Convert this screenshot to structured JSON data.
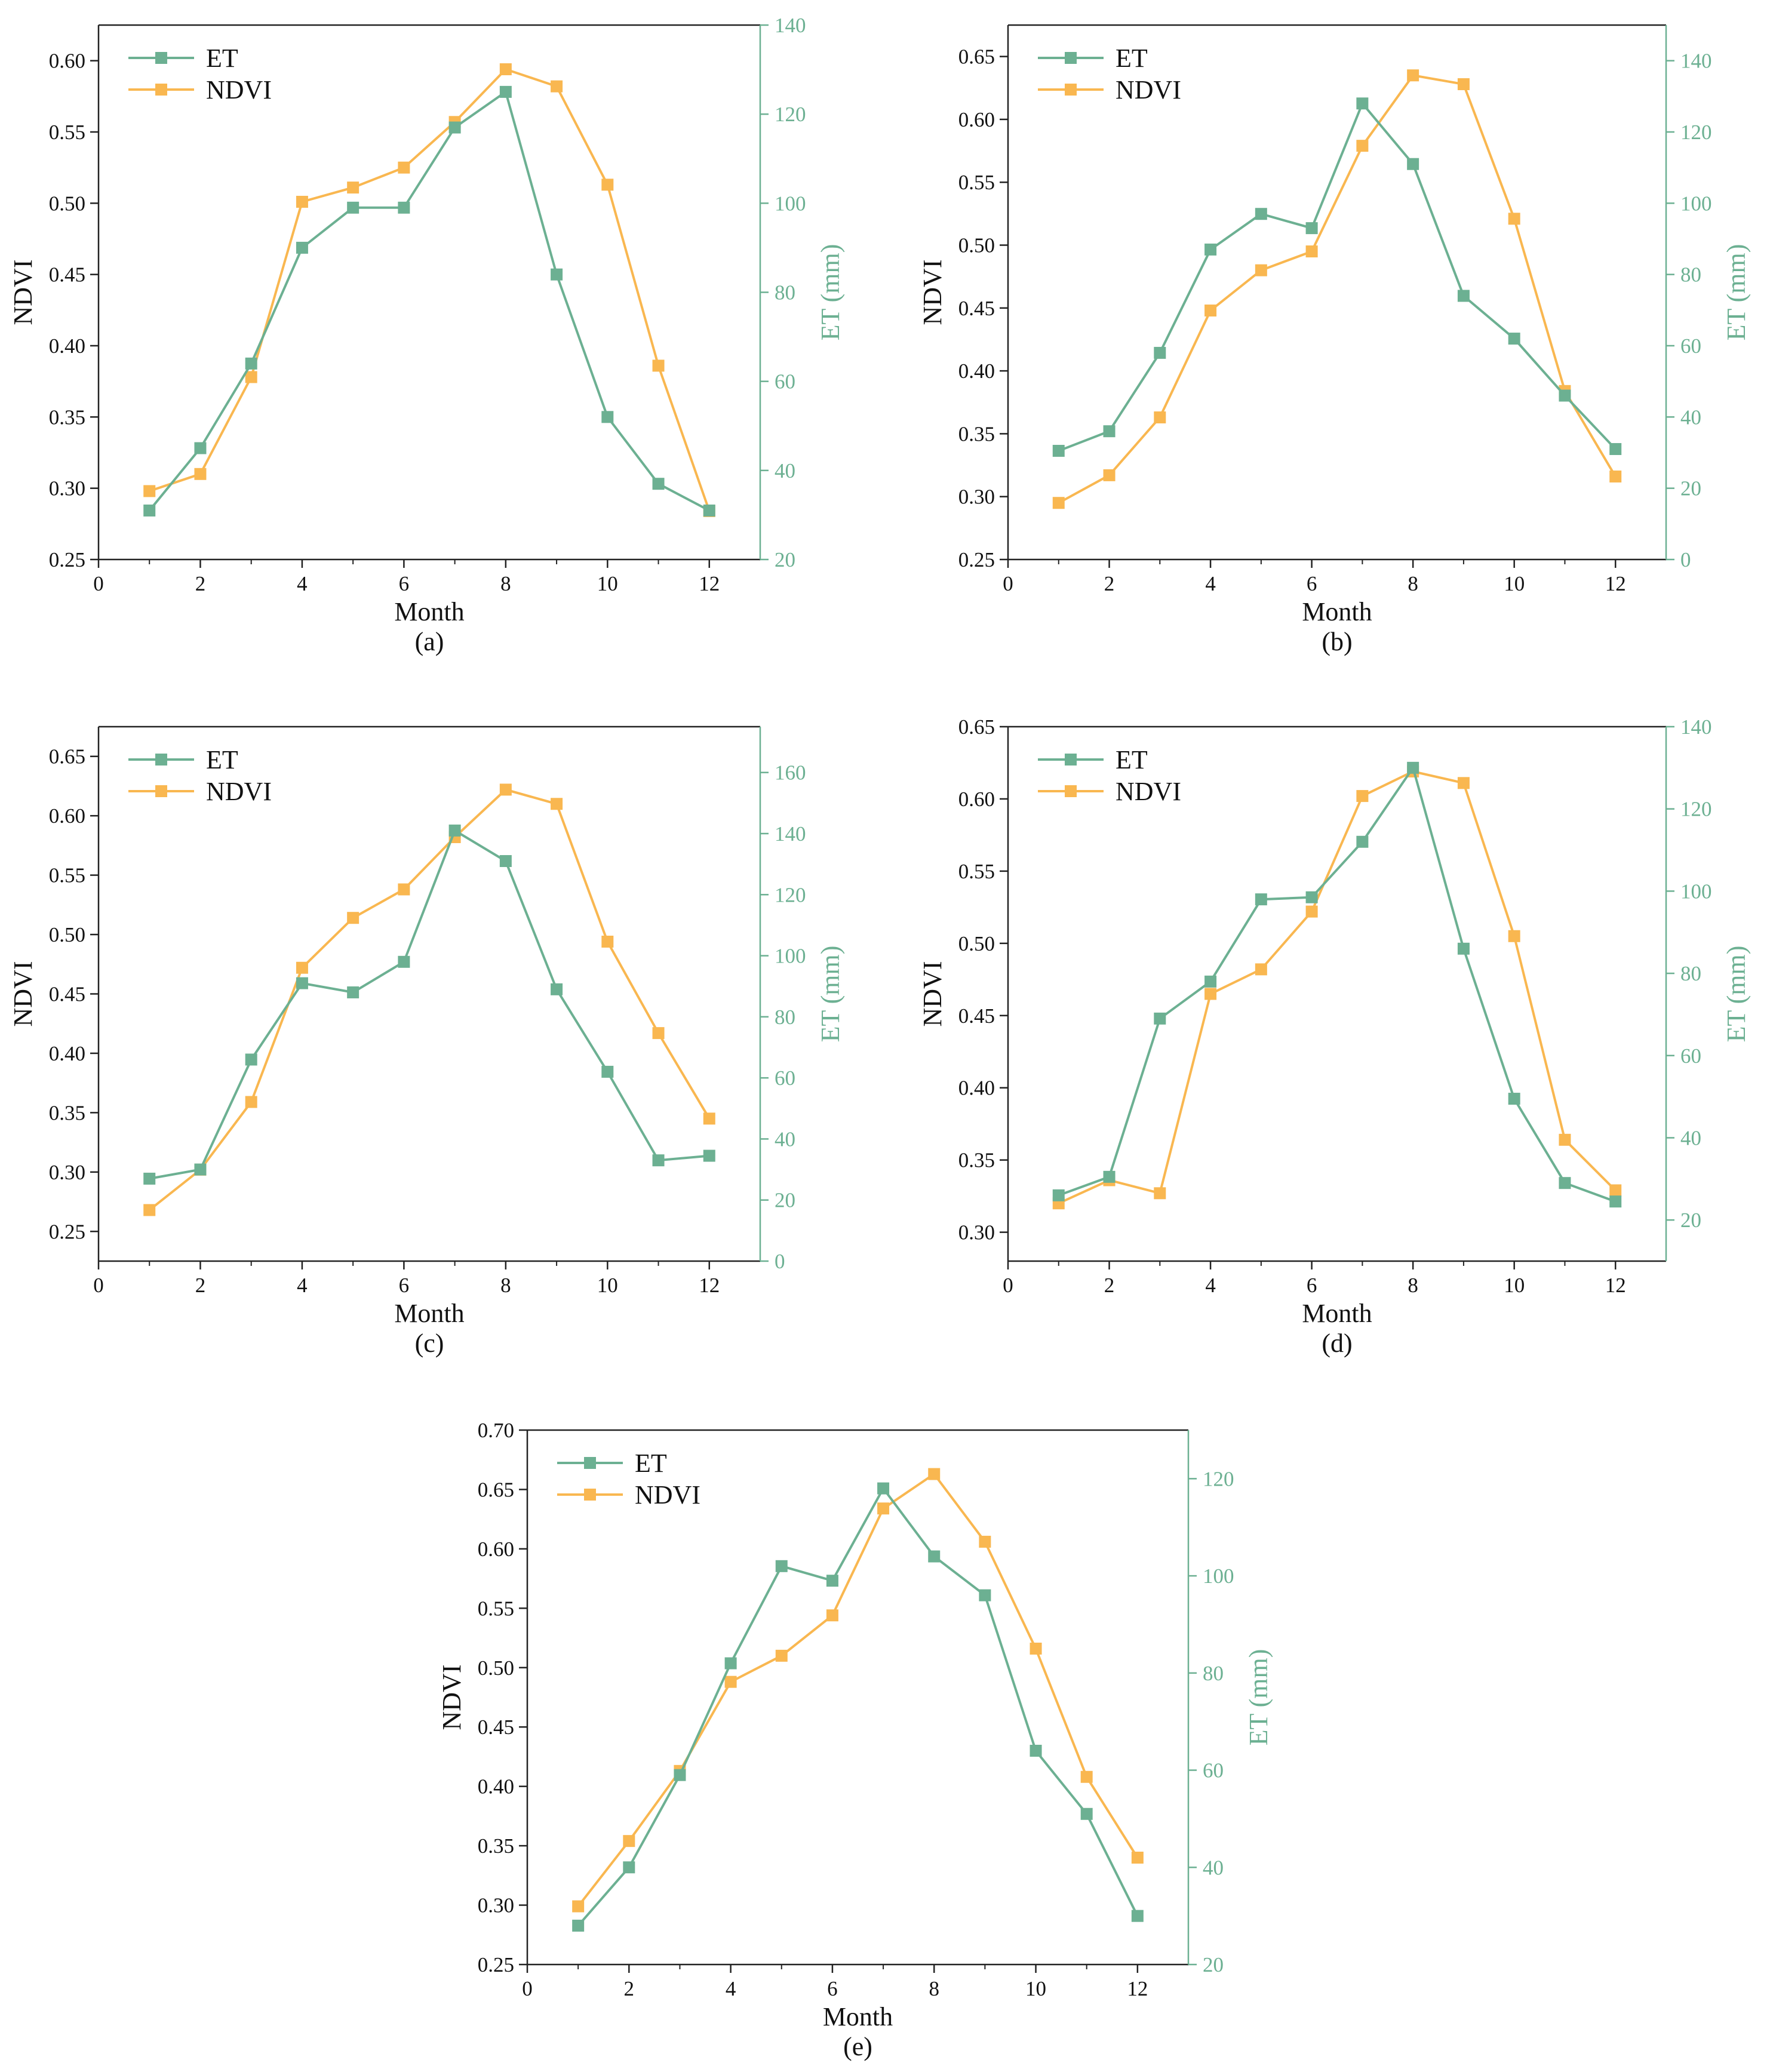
{
  "colors": {
    "et": "#6cb092",
    "ndvi": "#f9b750",
    "axis": "#222222"
  },
  "legend": {
    "et": "ET",
    "ndvi": "NDVI"
  },
  "labels": {
    "xlabel": "Month",
    "ylabel_left": "NDVI",
    "ylabel_right": "ET (mm)"
  },
  "chart_data": [
    {
      "type": "line",
      "caption": "(a)",
      "x": [
        1,
        2,
        3,
        4,
        5,
        6,
        7,
        8,
        9,
        10,
        11,
        12
      ],
      "xlim": [
        0,
        13
      ],
      "xticks": [
        0,
        2,
        4,
        6,
        8,
        10,
        12
      ],
      "ylim_left": [
        0.25,
        0.625
      ],
      "yticks_left": [
        "0.25",
        "0.30",
        "0.35",
        "0.40",
        "0.45",
        "0.50",
        "0.55",
        "0.60"
      ],
      "ylim_right": [
        20,
        140
      ],
      "yticks_right": [
        "20",
        "40",
        "60",
        "80",
        "100",
        "120",
        "140"
      ],
      "series": [
        {
          "name": "ET",
          "axis": "right",
          "values": [
            31,
            45,
            64,
            90,
            99,
            99,
            117,
            125,
            84,
            52,
            37,
            31
          ]
        },
        {
          "name": "NDVI",
          "axis": "left",
          "values": [
            0.298,
            0.31,
            0.378,
            0.501,
            0.511,
            0.525,
            0.557,
            0.594,
            0.582,
            0.513,
            0.386,
            0.284
          ]
        }
      ]
    },
    {
      "type": "line",
      "caption": "(b)",
      "x": [
        1,
        2,
        3,
        4,
        5,
        6,
        7,
        8,
        9,
        10,
        11,
        12
      ],
      "xlim": [
        0,
        13
      ],
      "xticks": [
        0,
        2,
        4,
        6,
        8,
        10,
        12
      ],
      "ylim_left": [
        0.25,
        0.675
      ],
      "yticks_left": [
        "0.25",
        "0.30",
        "0.35",
        "0.40",
        "0.45",
        "0.50",
        "0.55",
        "0.60",
        "0.65"
      ],
      "ylim_right": [
        0,
        150
      ],
      "yticks_right": [
        "0",
        "20",
        "40",
        "60",
        "80",
        "100",
        "120",
        "140"
      ],
      "series": [
        {
          "name": "ET",
          "axis": "right",
          "values": [
            30.5,
            36,
            58,
            87,
            97,
            93,
            128,
            111,
            74,
            62,
            46,
            31
          ]
        },
        {
          "name": "NDVI",
          "axis": "left",
          "values": [
            0.295,
            0.317,
            0.363,
            0.448,
            0.48,
            0.495,
            0.579,
            0.635,
            0.628,
            0.521,
            0.384,
            0.316
          ]
        }
      ]
    },
    {
      "type": "line",
      "caption": "(c)",
      "x": [
        1,
        2,
        3,
        4,
        5,
        6,
        7,
        8,
        9,
        10,
        11,
        12
      ],
      "xlim": [
        0,
        13
      ],
      "xticks": [
        0,
        2,
        4,
        6,
        8,
        10,
        12
      ],
      "ylim_left": [
        0.225,
        0.675
      ],
      "yticks_left": [
        "0.25",
        "0.30",
        "0.35",
        "0.40",
        "0.45",
        "0.50",
        "0.55",
        "0.60",
        "0.65"
      ],
      "ylim_right": [
        0,
        175
      ],
      "yticks_right": [
        "0",
        "20",
        "40",
        "60",
        "80",
        "100",
        "120",
        "140",
        "160"
      ],
      "series": [
        {
          "name": "ET",
          "axis": "right",
          "values": [
            27,
            30,
            66,
            91,
            88,
            98,
            141,
            131,
            89,
            62,
            33,
            34.5
          ]
        },
        {
          "name": "NDVI",
          "axis": "left",
          "values": [
            0.268,
            0.302,
            0.359,
            0.472,
            0.514,
            0.538,
            0.582,
            0.622,
            0.61,
            0.494,
            0.417,
            0.345
          ]
        }
      ]
    },
    {
      "type": "line",
      "caption": "(d)",
      "x": [
        1,
        2,
        3,
        4,
        5,
        6,
        7,
        8,
        9,
        10,
        11,
        12
      ],
      "xlim": [
        0,
        13
      ],
      "xticks": [
        0,
        2,
        4,
        6,
        8,
        10,
        12
      ],
      "ylim_left": [
        0.28,
        0.65
      ],
      "yticks_left": [
        "0.30",
        "0.35",
        "0.40",
        "0.45",
        "0.50",
        "0.55",
        "0.60",
        "0.65"
      ],
      "ylim_right": [
        10,
        140
      ],
      "yticks_right": [
        "20",
        "40",
        "60",
        "80",
        "100",
        "120",
        "140"
      ],
      "series": [
        {
          "name": "ET",
          "axis": "right",
          "values": [
            26,
            30.5,
            69,
            78,
            98,
            98.5,
            112,
            130,
            86,
            49.5,
            29,
            24.5
          ]
        },
        {
          "name": "NDVI",
          "axis": "left",
          "values": [
            0.32,
            0.336,
            0.327,
            0.465,
            0.482,
            0.522,
            0.602,
            0.619,
            0.611,
            0.505,
            0.364,
            0.329
          ]
        }
      ]
    },
    {
      "type": "line",
      "caption": "(e)",
      "x": [
        1,
        2,
        3,
        4,
        5,
        6,
        7,
        8,
        9,
        10,
        11,
        12
      ],
      "xlim": [
        0,
        13
      ],
      "xticks": [
        0,
        2,
        4,
        6,
        8,
        10,
        12
      ],
      "ylim_left": [
        0.25,
        0.7
      ],
      "yticks_left": [
        "0.25",
        "0.30",
        "0.35",
        "0.40",
        "0.45",
        "0.50",
        "0.55",
        "0.60",
        "0.65",
        "0.70"
      ],
      "ylim_right": [
        20,
        130
      ],
      "yticks_right": [
        "20",
        "40",
        "60",
        "80",
        "100",
        "120"
      ],
      "series": [
        {
          "name": "ET",
          "axis": "right",
          "values": [
            28,
            40,
            59,
            82,
            102,
            99,
            118,
            104,
            96,
            64,
            51,
            30
          ]
        },
        {
          "name": "NDVI",
          "axis": "left",
          "values": [
            0.299,
            0.354,
            0.413,
            0.488,
            0.51,
            0.544,
            0.634,
            0.663,
            0.606,
            0.516,
            0.408,
            0.34
          ]
        }
      ]
    }
  ]
}
